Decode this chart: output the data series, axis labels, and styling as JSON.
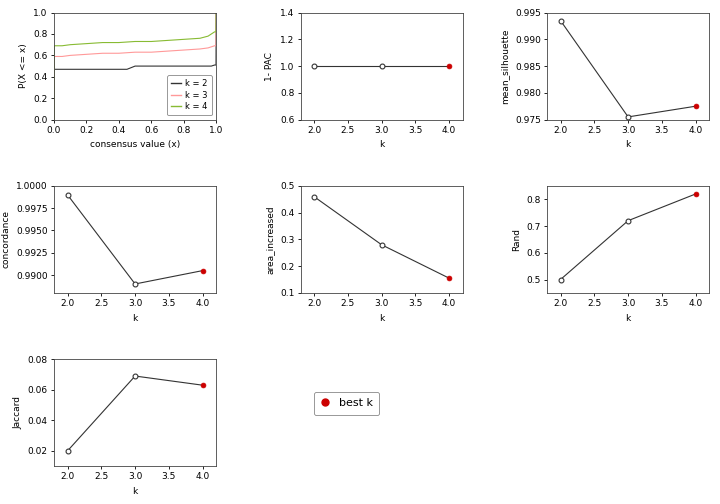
{
  "ecdf": {
    "k2_x": [
      0.0,
      0.001,
      0.05,
      0.1,
      0.15,
      0.2,
      0.25,
      0.3,
      0.35,
      0.4,
      0.45,
      0.5,
      0.51,
      0.55,
      0.6,
      0.65,
      0.7,
      0.75,
      0.8,
      0.85,
      0.9,
      0.95,
      0.97,
      0.99,
      0.999,
      1.0
    ],
    "k2_y": [
      0.0,
      0.47,
      0.47,
      0.47,
      0.47,
      0.47,
      0.47,
      0.47,
      0.47,
      0.47,
      0.47,
      0.5,
      0.5,
      0.5,
      0.5,
      0.5,
      0.5,
      0.5,
      0.5,
      0.5,
      0.5,
      0.5,
      0.5,
      0.51,
      0.51,
      1.0
    ],
    "k3_x": [
      0.0,
      0.001,
      0.05,
      0.1,
      0.2,
      0.3,
      0.4,
      0.5,
      0.6,
      0.7,
      0.8,
      0.9,
      0.95,
      0.97,
      0.99,
      0.999,
      1.0
    ],
    "k3_y": [
      0.0,
      0.59,
      0.59,
      0.6,
      0.61,
      0.62,
      0.62,
      0.63,
      0.63,
      0.64,
      0.65,
      0.66,
      0.67,
      0.68,
      0.69,
      0.69,
      1.0
    ],
    "k4_x": [
      0.0,
      0.001,
      0.05,
      0.1,
      0.2,
      0.3,
      0.4,
      0.5,
      0.6,
      0.7,
      0.8,
      0.9,
      0.95,
      0.97,
      0.99,
      0.999,
      1.0
    ],
    "k4_y": [
      0.0,
      0.69,
      0.69,
      0.7,
      0.71,
      0.72,
      0.72,
      0.73,
      0.73,
      0.74,
      0.75,
      0.76,
      0.78,
      0.8,
      0.82,
      0.82,
      1.0
    ],
    "k2_color": "#333333",
    "k3_color": "#ff9999",
    "k4_color": "#88bb33",
    "xlabel": "consensus value (x)",
    "ylabel": "P(X <= x)",
    "ylim": [
      0.0,
      1.0
    ],
    "xlim": [
      0.0,
      1.0
    ]
  },
  "pac": {
    "k": [
      2.0,
      3.0,
      4.0
    ],
    "y": [
      1.0,
      1.0,
      1.0
    ],
    "best_k": 4,
    "xlabel": "k",
    "ylabel": "1- PAC",
    "ylim": [
      0.6,
      1.4
    ],
    "yticks": [
      0.6,
      0.8,
      1.0,
      1.2,
      1.4
    ],
    "xlim": [
      1.8,
      4.2
    ]
  },
  "silhouette": {
    "k": [
      2.0,
      3.0,
      4.0
    ],
    "y": [
      0.9935,
      0.9755,
      0.9775
    ],
    "best_k": 4,
    "xlabel": "k",
    "ylabel": "mean_silhouette",
    "ylim": [
      0.975,
      0.995
    ],
    "xlim": [
      1.8,
      4.2
    ]
  },
  "concordance": {
    "k": [
      2.0,
      3.0,
      4.0
    ],
    "y": [
      0.999,
      0.989,
      0.9905
    ],
    "best_k": 4,
    "xlabel": "k",
    "ylabel": "concordance",
    "ylim": [
      0.988,
      1.0
    ],
    "xlim": [
      1.8,
      4.2
    ]
  },
  "area": {
    "k": [
      2.0,
      3.0,
      4.0
    ],
    "y": [
      0.46,
      0.28,
      0.155
    ],
    "best_k": 4,
    "xlabel": "k",
    "ylabel": "area_increased",
    "ylim": [
      0.1,
      0.5
    ],
    "xlim": [
      1.8,
      4.2
    ]
  },
  "rand": {
    "k": [
      2.0,
      3.0,
      4.0
    ],
    "y": [
      0.5,
      0.72,
      0.82
    ],
    "best_k": 4,
    "xlabel": "k",
    "ylabel": "Rand",
    "ylim": [
      0.45,
      0.85
    ],
    "xlim": [
      1.8,
      4.2
    ]
  },
  "jaccard": {
    "k": [
      2.0,
      3.0,
      4.0
    ],
    "y": [
      0.02,
      0.069,
      0.063
    ],
    "best_k": 4,
    "xlabel": "k",
    "ylabel": "Jaccard",
    "ylim": [
      0.01,
      0.08
    ],
    "xlim": [
      1.8,
      4.2
    ]
  },
  "best_k_color": "#cc0000",
  "line_color": "#333333",
  "background_color": "white",
  "fontsize": 6.5
}
